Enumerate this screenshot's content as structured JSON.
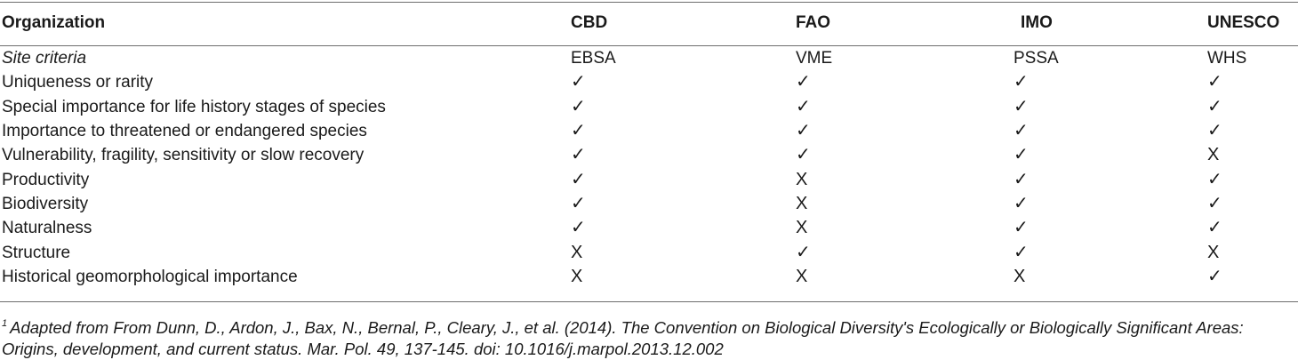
{
  "table": {
    "header": {
      "organization": "Organization",
      "columns": [
        "CBD",
        "FAO",
        "IMO",
        "UNESCO"
      ]
    },
    "site_criteria": {
      "label": "Site criteria",
      "values": [
        "EBSA",
        "VME",
        "PSSA",
        "WHS"
      ]
    },
    "rows": [
      {
        "label": "Uniqueness or rarity",
        "values": [
          "✓",
          "✓",
          "✓",
          "✓"
        ]
      },
      {
        "label": "Special importance for life history stages of species",
        "values": [
          "✓",
          "✓",
          "✓",
          "✓"
        ]
      },
      {
        "label": "Importance to threatened or endangered species",
        "values": [
          "✓",
          "✓",
          "✓",
          "✓"
        ]
      },
      {
        "label": "Vulnerability, fragility, sensitivity or slow recovery",
        "values": [
          "✓",
          "✓",
          "✓",
          "X"
        ]
      },
      {
        "label": "Productivity",
        "values": [
          "✓",
          "X",
          "✓",
          "✓"
        ]
      },
      {
        "label": "Biodiversity",
        "values": [
          "✓",
          "X",
          "✓",
          "✓"
        ]
      },
      {
        "label": "Naturalness",
        "values": [
          "✓",
          "X",
          "✓",
          "✓"
        ]
      },
      {
        "label": "Structure",
        "values": [
          "X",
          "✓",
          "✓",
          "X"
        ]
      },
      {
        "label": "Historical geomorphological importance",
        "values": [
          "X",
          "X",
          "X",
          "✓"
        ]
      }
    ]
  },
  "footnote": {
    "marker": "1",
    "text": "Adapted from From Dunn, D., Ardon, J., Bax, N., Bernal, P., Cleary, J., et al. (2014). The Convention on Biological Diversity's Ecologically or Biologically Significant Areas: Origins, development, and current status. Mar. Pol. 49, 137-145. doi: 10.1016/j.marpol.2013.12.002"
  }
}
